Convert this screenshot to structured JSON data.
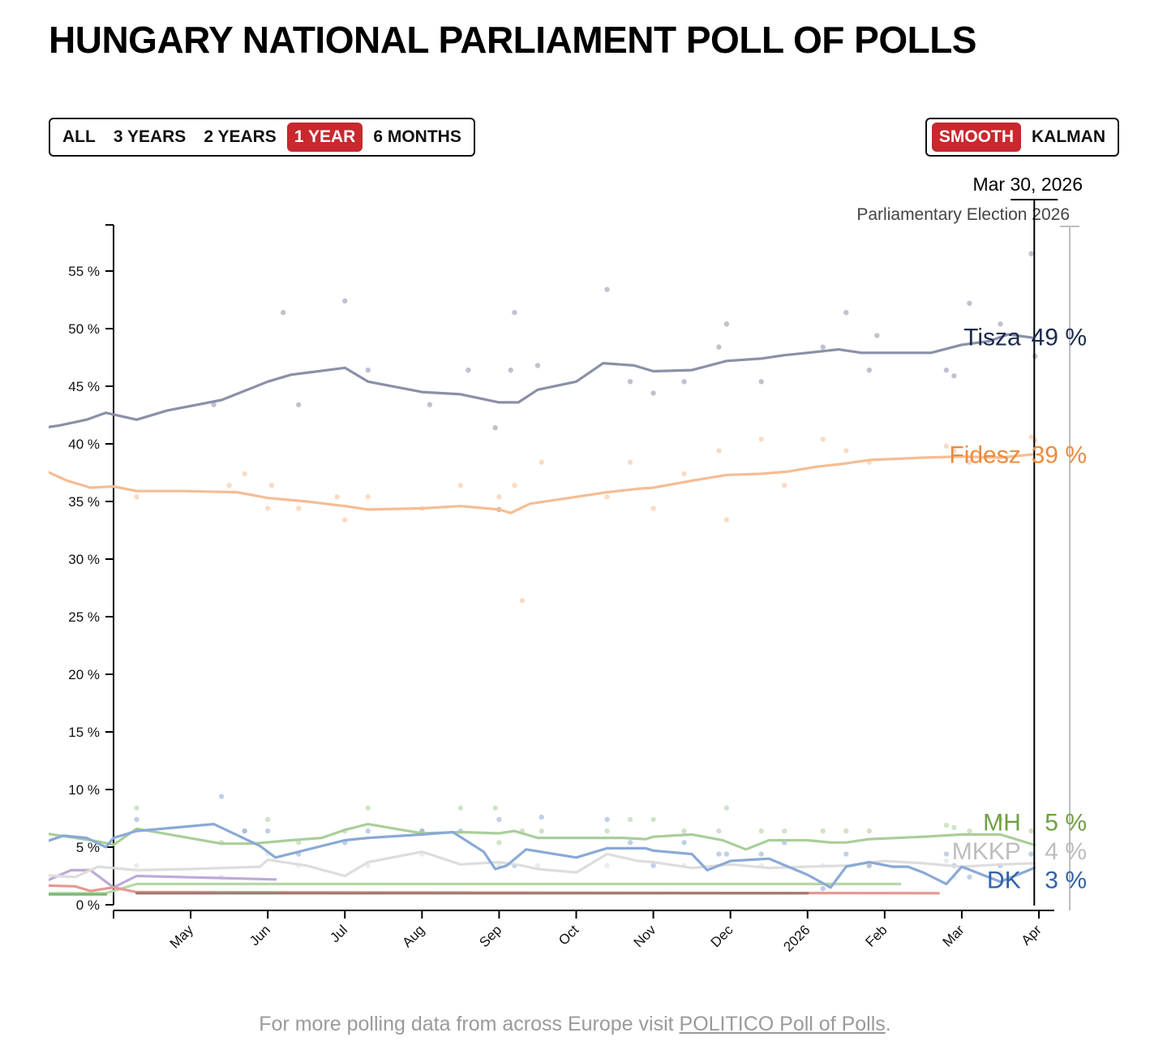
{
  "title": "HUNGARY NATIONAL PARLIAMENT POLL OF POLLS",
  "range_buttons": [
    {
      "label": "ALL",
      "active": false
    },
    {
      "label": "3 YEARS",
      "active": false
    },
    {
      "label": "2 YEARS",
      "active": false
    },
    {
      "label": "1 YEAR",
      "active": true
    },
    {
      "label": "6 MONTHS",
      "active": false
    }
  ],
  "method_buttons": [
    {
      "label": "SMOOTH",
      "active": true
    },
    {
      "label": "KALMAN",
      "active": false
    }
  ],
  "colors": {
    "accent": "#c8282e"
  },
  "footer": {
    "prefix": "For more polling data from across Europe visit ",
    "link": "POLITICO Poll of Polls",
    "suffix": "."
  },
  "chart_data": {
    "type": "line",
    "title": "HUNGARY NATIONAL PARLIAMENT POLL OF POLLS",
    "xlabel": "",
    "ylabel": "",
    "ylim": [
      0,
      59
    ],
    "x_range": [
      -1,
      12.5
    ],
    "x_ticks": [
      {
        "x": 1,
        "label": "May"
      },
      {
        "x": 2,
        "label": "Jun"
      },
      {
        "x": 3,
        "label": "Jul"
      },
      {
        "x": 4,
        "label": "Aug"
      },
      {
        "x": 5,
        "label": "Sep"
      },
      {
        "x": 6,
        "label": "Oct"
      },
      {
        "x": 7,
        "label": "Nov"
      },
      {
        "x": 8,
        "label": "Dec"
      },
      {
        "x": 9,
        "label": "2026"
      },
      {
        "x": 10,
        "label": "Feb"
      },
      {
        "x": 11,
        "label": "Mar"
      },
      {
        "x": 12,
        "label": "Apr"
      }
    ],
    "y_ticks": [
      0,
      5,
      10,
      15,
      20,
      25,
      30,
      35,
      40,
      45,
      50,
      55
    ],
    "y_tick_suffix": " %",
    "current_date": {
      "label": "Mar 30, 2026",
      "x": 11.94
    },
    "event": {
      "label": "Parliamentary Election 2026",
      "x": 12.4
    },
    "series": [
      {
        "name": "Tisza",
        "color": "#8a90a8",
        "label_color": "#1c2a4e",
        "latest": "49 %",
        "label_x": 11.85,
        "x": [
          -1.0,
          -0.7,
          -0.35,
          -0.1,
          0.3,
          0.7,
          1.4,
          2.0,
          2.3,
          3.0,
          3.3,
          4.0,
          4.5,
          5.0,
          5.25,
          5.5,
          6.0,
          6.35,
          6.75,
          7.0,
          7.5,
          7.95,
          8.4,
          8.7,
          9.0,
          9.4,
          9.7,
          10.0,
          10.6,
          11.0,
          11.35,
          11.6,
          11.94
        ],
        "y": [
          41.3,
          41.6,
          42.1,
          42.7,
          42.1,
          42.9,
          43.8,
          45.4,
          46.0,
          46.6,
          45.4,
          44.5,
          44.3,
          43.6,
          43.6,
          44.7,
          45.4,
          47.0,
          46.8,
          46.3,
          46.4,
          47.2,
          47.4,
          47.7,
          47.9,
          48.2,
          47.9,
          47.9,
          47.9,
          48.6,
          48.9,
          49.5,
          49.2
        ],
        "points_x": [
          1.3,
          2.2,
          2.4,
          3.0,
          3.3,
          4.1,
          4.6,
          4.95,
          5.0,
          5.15,
          5.2,
          5.5,
          6.4,
          6.7,
          7.0,
          7.4,
          7.85,
          7.95,
          8.4,
          9.2,
          9.5,
          9.8,
          9.9,
          10.8,
          10.9,
          11.1,
          11.5,
          11.9,
          11.95
        ],
        "points_y": [
          43.4,
          51.4,
          43.4,
          52.4,
          46.4,
          43.4,
          46.4,
          41.4,
          34.3,
          46.4,
          51.4,
          46.8,
          53.4,
          45.4,
          44.4,
          45.4,
          48.4,
          50.4,
          45.4,
          48.4,
          51.4,
          46.4,
          49.4,
          46.4,
          45.9,
          52.2,
          50.4,
          56.5,
          47.6
        ]
      },
      {
        "name": "Fidesz",
        "color": "#f5bd94",
        "label_color": "#ee8a3c",
        "latest": "39 %",
        "label_x": 11.85,
        "x": [
          -1.0,
          -0.6,
          -0.3,
          0.0,
          0.3,
          0.9,
          1.6,
          2.0,
          2.5,
          3.0,
          3.3,
          4.0,
          4.5,
          5.0,
          5.15,
          5.4,
          6.0,
          6.4,
          6.8,
          7.0,
          7.5,
          7.95,
          8.4,
          8.75,
          9.1,
          9.5,
          9.8,
          10.5,
          11.0,
          11.5,
          11.94
        ],
        "y": [
          38.0,
          36.8,
          36.2,
          36.3,
          35.9,
          35.9,
          35.8,
          35.3,
          35.0,
          34.6,
          34.3,
          34.4,
          34.6,
          34.3,
          34.0,
          34.8,
          35.4,
          35.8,
          36.1,
          36.2,
          36.8,
          37.3,
          37.4,
          37.6,
          38.0,
          38.3,
          38.6,
          38.8,
          38.9,
          38.8,
          39.1
        ],
        "points_x": [
          0.3,
          1.5,
          1.7,
          2.0,
          2.05,
          2.4,
          2.9,
          3.0,
          3.3,
          4.0,
          4.5,
          5.0,
          5.2,
          5.3,
          5.55,
          6.4,
          6.7,
          7.0,
          7.4,
          7.85,
          7.95,
          8.4,
          8.7,
          9.2,
          9.5,
          9.8,
          10.8,
          10.9,
          11.1,
          11.5,
          11.9,
          11.95
        ],
        "points_y": [
          35.4,
          36.4,
          37.4,
          34.4,
          36.4,
          34.4,
          35.4,
          33.4,
          35.4,
          34.4,
          36.4,
          35.4,
          36.4,
          26.4,
          38.4,
          35.4,
          38.4,
          34.4,
          37.4,
          39.4,
          33.4,
          40.4,
          36.4,
          40.4,
          39.4,
          38.4,
          39.8,
          39.4,
          38.4,
          38.9,
          40.6,
          40.3
        ]
      },
      {
        "name": "MH",
        "color": "#a9ce9a",
        "label_color": "#6fa044",
        "latest": "5 %",
        "label_x": 11.85,
        "x": [
          -1.0,
          -0.5,
          -0.2,
          0.0,
          0.3,
          1.4,
          1.8,
          2.3,
          2.7,
          3.0,
          3.3,
          4.0,
          4.5,
          5.0,
          5.2,
          5.5,
          6.0,
          6.6,
          6.9,
          7.0,
          7.5,
          7.9,
          8.2,
          8.5,
          9.0,
          9.3,
          9.5,
          9.8,
          10.5,
          11.0,
          11.5,
          11.94
        ],
        "y": [
          6.3,
          5.8,
          5.5,
          5.2,
          6.6,
          5.3,
          5.3,
          5.6,
          5.8,
          6.5,
          7.0,
          6.2,
          6.3,
          6.2,
          6.4,
          5.8,
          5.8,
          5.8,
          5.7,
          5.9,
          6.1,
          5.6,
          4.8,
          5.6,
          5.6,
          5.4,
          5.4,
          5.7,
          5.9,
          6.1,
          6.1,
          5.2
        ],
        "points_x": [
          0.3,
          1.4,
          1.7,
          2.0,
          2.4,
          3.0,
          3.3,
          4.0,
          4.5,
          4.95,
          5.0,
          5.3,
          5.55,
          6.4,
          6.7,
          7.0,
          7.4,
          7.85,
          7.95,
          8.4,
          8.7,
          9.2,
          9.5,
          9.8,
          10.8,
          10.9,
          11.1,
          11.5,
          11.9
        ],
        "points_y": [
          8.4,
          5.4,
          6.4,
          7.4,
          5.4,
          6.4,
          8.4,
          6.4,
          8.4,
          8.4,
          5.4,
          6.4,
          6.4,
          6.4,
          7.4,
          7.4,
          6.4,
          6.4,
          8.4,
          6.4,
          6.4,
          6.4,
          6.4,
          6.4,
          6.9,
          6.7,
          6.4,
          7.4,
          6.4
        ]
      },
      {
        "name": "MKKP",
        "color": "#dddddd",
        "label_color": "#bdbdbd",
        "latest": "4 %",
        "label_x": 11.85,
        "x": [
          -1.0,
          -0.5,
          -0.2,
          0.3,
          1.0,
          1.9,
          2.0,
          2.5,
          3.0,
          3.3,
          4.0,
          4.5,
          5.0,
          5.3,
          5.5,
          6.0,
          6.4,
          6.8,
          7.0,
          7.5,
          8.0,
          8.5,
          9.0,
          9.5,
          10.0,
          10.5,
          11.0,
          11.5,
          11.94
        ],
        "y": [
          2.6,
          2.4,
          3.3,
          3.0,
          3.1,
          3.3,
          3.9,
          3.4,
          2.5,
          3.7,
          4.6,
          3.5,
          3.7,
          3.4,
          3.1,
          2.8,
          4.4,
          3.8,
          3.7,
          3.2,
          3.5,
          3.2,
          3.3,
          3.4,
          3.8,
          3.6,
          3.3,
          3.5,
          3.6
        ],
        "points_x": [
          0.3,
          1.4,
          2.0,
          2.4,
          3.3,
          4.0,
          5.0,
          5.5,
          6.4,
          7.4,
          8.4,
          9.2,
          9.8,
          10.8,
          10.9,
          11.5
        ],
        "points_y": [
          3.4,
          2.4,
          4.4,
          3.4,
          3.4,
          4.4,
          3.4,
          3.4,
          3.4,
          3.4,
          3.4,
          3.4,
          3.4,
          3.8,
          2.4,
          2.8
        ]
      },
      {
        "name": "DK",
        "color": "#8aa9d6",
        "label_color": "#2f63a8",
        "latest": "3 %",
        "label_x": 11.85,
        "x": [
          -1.0,
          -0.65,
          -0.35,
          -0.1,
          0.0,
          0.3,
          1.3,
          1.9,
          2.1,
          3.0,
          3.3,
          4.0,
          4.4,
          4.8,
          4.95,
          5.1,
          5.35,
          6.0,
          6.4,
          6.9,
          7.0,
          7.5,
          7.7,
          8.0,
          8.5,
          9.0,
          9.3,
          9.5,
          9.8,
          10.1,
          10.3,
          10.5,
          10.8,
          11.0,
          11.5,
          11.94
        ],
        "y": [
          5.2,
          6.0,
          5.8,
          5.0,
          5.8,
          6.4,
          7.0,
          5.1,
          4.1,
          5.6,
          5.8,
          6.1,
          6.3,
          4.6,
          3.1,
          3.4,
          4.8,
          4.1,
          4.9,
          4.9,
          4.7,
          4.4,
          3.0,
          3.8,
          4.0,
          2.6,
          1.5,
          3.3,
          3.7,
          3.3,
          3.3,
          2.8,
          1.8,
          3.3,
          2.0,
          3.2
        ],
        "points_x": [
          0.3,
          1.4,
          1.7,
          2.0,
          2.4,
          3.0,
          3.3,
          4.0,
          4.5,
          5.0,
          5.2,
          5.55,
          6.4,
          6.7,
          7.0,
          7.4,
          7.85,
          7.95,
          8.4,
          8.7,
          9.2,
          9.5,
          9.8,
          10.8,
          10.9,
          11.1,
          11.5,
          11.9
        ],
        "points_y": [
          7.4,
          9.4,
          6.4,
          6.4,
          4.4,
          5.4,
          6.4,
          6.4,
          6.4,
          7.4,
          3.4,
          7.6,
          7.4,
          5.4,
          3.4,
          5.4,
          4.4,
          4.4,
          4.4,
          5.4,
          1.4,
          4.4,
          3.4,
          4.4,
          3.4,
          2.4,
          3.4,
          4.4
        ]
      },
      {
        "name": "",
        "color": "#bcaad9",
        "label_color": "#bcaad9",
        "latest": "",
        "label_x": 0,
        "x": [
          -1.0,
          -0.55,
          -0.3,
          0.0,
          0.3,
          2.1
        ],
        "y": [
          1.7,
          3.0,
          3.0,
          1.5,
          2.5,
          2.2
        ]
      },
      {
        "name": "",
        "color": "#b5d7a7",
        "label_color": "#b5d7a7",
        "latest": "",
        "label_x": 0,
        "x": [
          -1.0,
          -0.1,
          0.3,
          10.2
        ],
        "y": [
          1.0,
          1.0,
          1.8,
          1.8
        ]
      },
      {
        "name": "",
        "color": "#e49a93",
        "label_color": "#e49a93",
        "latest": "",
        "label_x": 0,
        "x": [
          -1.0,
          -0.5,
          -0.3,
          0.0,
          0.3,
          10.7
        ],
        "y": [
          1.7,
          1.6,
          1.2,
          1.5,
          1.1,
          1.0
        ]
      },
      {
        "name": "",
        "color": "#a07a70",
        "label_color": "#a07a70",
        "latest": "",
        "label_x": 0,
        "x": [
          0.3,
          9.0
        ],
        "y": [
          1.0,
          1.0
        ]
      },
      {
        "name": "",
        "color": "#7cb774",
        "label_color": "#7cb774",
        "latest": "",
        "label_x": 0,
        "x": [
          -1.0,
          -0.1
        ],
        "y": [
          0.9,
          0.9
        ]
      }
    ]
  }
}
